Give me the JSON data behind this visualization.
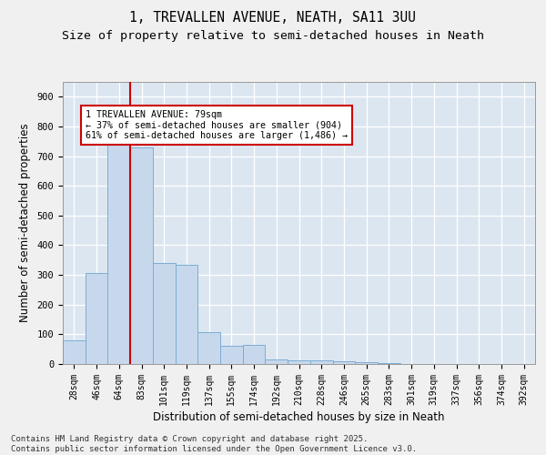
{
  "title_line1": "1, TREVALLEN AVENUE, NEATH, SA11 3UU",
  "title_line2": "Size of property relative to semi-detached houses in Neath",
  "xlabel": "Distribution of semi-detached houses by size in Neath",
  "ylabel": "Number of semi-detached properties",
  "categories": [
    "28sqm",
    "46sqm",
    "64sqm",
    "83sqm",
    "101sqm",
    "119sqm",
    "137sqm",
    "155sqm",
    "174sqm",
    "192sqm",
    "210sqm",
    "228sqm",
    "246sqm",
    "265sqm",
    "283sqm",
    "301sqm",
    "319sqm",
    "337sqm",
    "356sqm",
    "374sqm",
    "392sqm"
  ],
  "values": [
    80,
    305,
    750,
    730,
    340,
    335,
    107,
    60,
    65,
    14,
    12,
    12,
    10,
    5,
    2,
    0,
    0,
    0,
    0,
    0,
    0
  ],
  "bar_color": "#c8d8ec",
  "bar_edge_color": "#7aadd4",
  "vline_x": 2.5,
  "vline_color": "#cc0000",
  "annotation_text": "1 TREVALLEN AVENUE: 79sqm\n← 37% of semi-detached houses are smaller (904)\n61% of semi-detached houses are larger (1,486) →",
  "annotation_box_color": "#cc0000",
  "ylim": [
    0,
    950
  ],
  "yticks": [
    0,
    100,
    200,
    300,
    400,
    500,
    600,
    700,
    800,
    900
  ],
  "background_color": "#dce6f0",
  "plot_bg_color": "#dce6f0",
  "fig_bg_color": "#f0f0f0",
  "grid_color": "#ffffff",
  "footer_text": "Contains HM Land Registry data © Crown copyright and database right 2025.\nContains public sector information licensed under the Open Government Licence v3.0.",
  "title_fontsize": 10.5,
  "subtitle_fontsize": 9.5,
  "tick_fontsize": 7,
  "label_fontsize": 8.5,
  "footer_fontsize": 6.5
}
